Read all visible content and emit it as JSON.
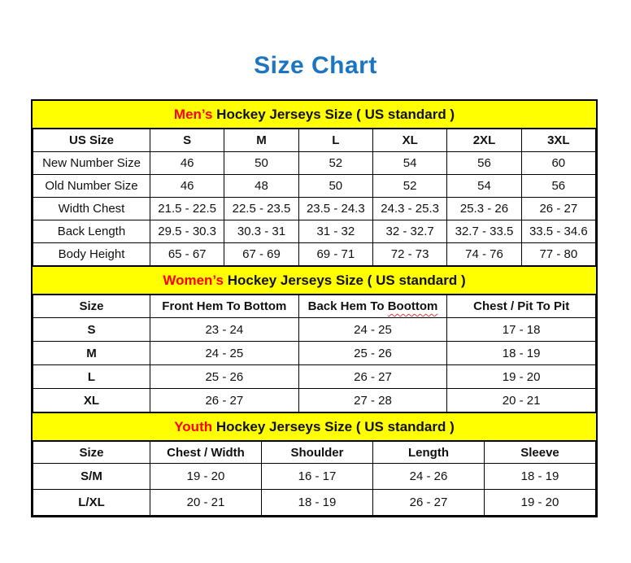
{
  "page": {
    "title": "Size Chart"
  },
  "colors": {
    "title_blue": "#1B75C0",
    "banner_yellow": "#FFFF00",
    "accent_red": "#FF0000",
    "squiggle_red": "#E03A2F",
    "border_black": "#000000"
  },
  "sections": [
    {
      "banner": {
        "highlight": "Men’s",
        "rest": " Hockey Jerseys Size ( US standard )"
      }
    },
    {
      "banner": {
        "highlight": "Women’s",
        "rest": " Hockey Jerseys Size ( US standard )"
      },
      "misspelled_column": {
        "prefix": "Back Hem To ",
        "word": "Boottom"
      }
    },
    {
      "banner": {
        "highlight": "Youth",
        "rest": " Hockey Jerseys Size ( US standard )"
      }
    }
  ],
  "chart_data": [
    {
      "type": "table",
      "title": "Men’s Hockey Jerseys Size ( US standard )",
      "columns": [
        "US Size",
        "S",
        "M",
        "L",
        "XL",
        "2XL",
        "3XL"
      ],
      "rows": [
        [
          "New Number Size",
          "46",
          "50",
          "52",
          "54",
          "56",
          "60"
        ],
        [
          "Old Number Size",
          "46",
          "48",
          "50",
          "52",
          "54",
          "56"
        ],
        [
          "Width Chest",
          "21.5 - 22.5",
          "22.5 - 23.5",
          "23.5 - 24.3",
          "24.3 - 25.3",
          "25.3 - 26",
          "26 - 27"
        ],
        [
          "Back Length",
          "29.5 - 30.3",
          "30.3 - 31",
          "31 - 32",
          "32 - 32.7",
          "32.7 - 33.5",
          "33.5 - 34.6"
        ],
        [
          "Body Height",
          "65 - 67",
          "67 - 69",
          "69 - 71",
          "72 - 73",
          "74 - 76",
          "77 - 80"
        ]
      ]
    },
    {
      "type": "table",
      "title": "Women’s Hockey Jerseys Size ( US standard )",
      "columns": [
        "Size",
        "Front Hem To Bottom",
        "Back Hem To Boottom",
        "Chest / Pit To Pit"
      ],
      "rows": [
        [
          "S",
          "23 - 24",
          "24 - 25",
          "17 - 18"
        ],
        [
          "M",
          "24 - 25",
          "25 - 26",
          "18 - 19"
        ],
        [
          "L",
          "25 - 26",
          "26 - 27",
          "19 - 20"
        ],
        [
          "XL",
          "26 - 27",
          "27 - 28",
          "20 - 21"
        ]
      ]
    },
    {
      "type": "table",
      "title": "Youth Hockey Jerseys Size ( US standard )",
      "columns": [
        "Size",
        "Chest / Width",
        "Shoulder",
        "Length",
        "Sleeve"
      ],
      "rows": [
        [
          "S/M",
          "19 - 20",
          "16 - 17",
          "24 - 26",
          "18 - 19"
        ],
        [
          "L/XL",
          "20 - 21",
          "18 - 19",
          "26 - 27",
          "19 - 20"
        ]
      ]
    }
  ]
}
